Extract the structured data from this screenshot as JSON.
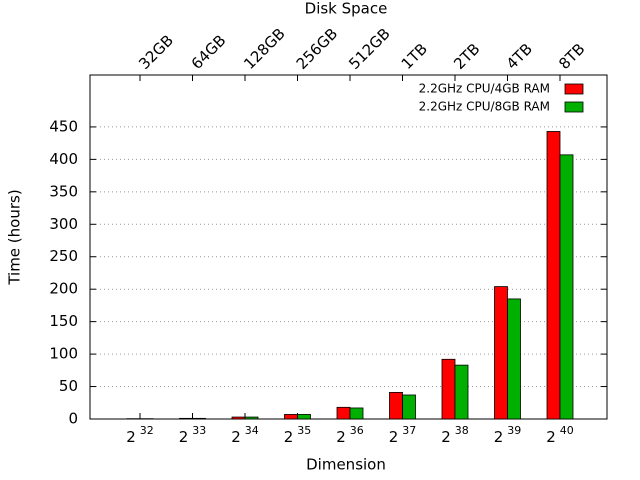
{
  "chart_data": {
    "type": "bar",
    "x_label": "Dimension",
    "y_label": "Time (hours)",
    "x2_label": "Disk Space",
    "categories": [
      {
        "base": "2",
        "exponent": "32"
      },
      {
        "base": "2",
        "exponent": "33"
      },
      {
        "base": "2",
        "exponent": "34"
      },
      {
        "base": "2",
        "exponent": "35"
      },
      {
        "base": "2",
        "exponent": "36"
      },
      {
        "base": "2",
        "exponent": "37"
      },
      {
        "base": "2",
        "exponent": "38"
      },
      {
        "base": "2",
        "exponent": "39"
      },
      {
        "base": "2",
        "exponent": "40"
      }
    ],
    "x2_categories": [
      "32GB",
      "64GB",
      "128GB",
      "256GB",
      "512GB",
      "1TB",
      "2TB",
      "4TB",
      "8TB"
    ],
    "series": [
      {
        "name": "2.2GHz CPU/4GB RAM",
        "color": "#ff0000",
        "values": [
          0.5,
          1,
          3,
          7,
          18,
          41,
          92,
          204,
          443
        ]
      },
      {
        "name": "2.2GHz CPU/8GB RAM",
        "color": "#00b000",
        "values": [
          0.5,
          1,
          3,
          7,
          17,
          37,
          83,
          185,
          407
        ]
      }
    ],
    "ylim": [
      0,
      530
    ],
    "yticks": [
      0,
      50,
      100,
      150,
      200,
      250,
      300,
      350,
      400,
      450
    ],
    "grid": true,
    "legend": "top-right"
  }
}
